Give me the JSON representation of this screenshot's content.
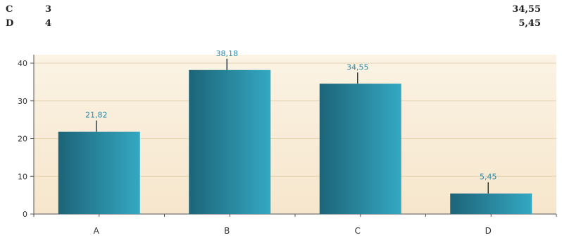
{
  "summary_rows": [
    {
      "category": "C",
      "count": "3",
      "percent": "34,55"
    },
    {
      "category": "D",
      "count": "4",
      "percent": "5,45"
    }
  ],
  "colors": {
    "plot_bg_top": "#fbf3e4",
    "plot_bg_bottom": "#f6e6cc",
    "bar_dark": "#1d6478",
    "bar_light": "#34a8c2",
    "value_label": "#2a8aa8",
    "axis": "#555555"
  },
  "chart_data": {
    "type": "bar",
    "categories": [
      "A",
      "B",
      "C",
      "D"
    ],
    "values": [
      21.82,
      38.18,
      34.55,
      5.45
    ],
    "value_labels": [
      "21,82",
      "38,18",
      "34,55",
      "5,45"
    ],
    "error_bars": true,
    "title": "",
    "xlabel": "",
    "ylabel": "",
    "ylim": [
      0,
      40
    ],
    "yticks": [
      0,
      10,
      20,
      30,
      40
    ],
    "grid": true,
    "legend": "none"
  }
}
